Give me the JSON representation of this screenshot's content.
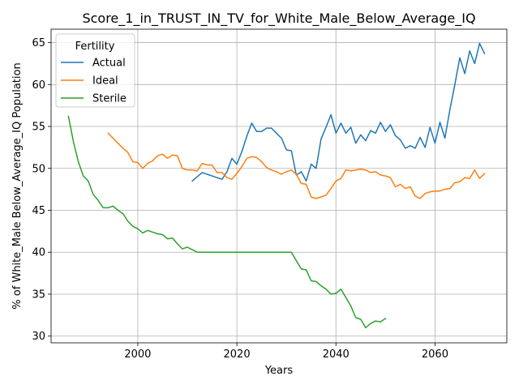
{
  "chart_data": {
    "type": "line",
    "title": "Score_1_in_TRUST_IN_TV_for_White_Male_Below_Average_IQ",
    "xlabel": "Years",
    "ylabel": "% of White_Male Below_Average_IQ Population",
    "xlim": [
      1982.5,
      2074.5
    ],
    "ylim": [
      29.2,
      66.6
    ],
    "xticks": [
      2000,
      2020,
      2040,
      2060
    ],
    "yticks": [
      30,
      35,
      40,
      45,
      50,
      55,
      60,
      65
    ],
    "grid": true,
    "legend": {
      "title": "Fertility",
      "placement": "top-left"
    },
    "series": [
      {
        "name": "Actual",
        "color": "#1f77b4",
        "x": [
          2011,
          2012,
          2013,
          2014,
          2015,
          2016,
          2017,
          2018,
          2019,
          2020,
          2021,
          2022,
          2023,
          2024,
          2025,
          2026,
          2027,
          2028,
          2029,
          2030,
          2031,
          2032,
          2033,
          2034,
          2035,
          2036,
          2037,
          2038,
          2039,
          2040,
          2041,
          2042,
          2043,
          2044,
          2045,
          2046,
          2047,
          2048,
          2049,
          2050,
          2051,
          2052,
          2053,
          2054,
          2055,
          2056,
          2057,
          2058,
          2059,
          2060,
          2061,
          2062,
          2063,
          2064,
          2065,
          2066,
          2067,
          2068,
          2069,
          2070
        ],
        "values": [
          48.5,
          49.0,
          49.5,
          49.3,
          49.1,
          48.9,
          48.7,
          49.6,
          51.2,
          50.5,
          52.0,
          53.8,
          55.4,
          54.4,
          54.4,
          54.8,
          54.8,
          54.2,
          53.6,
          52.2,
          52.1,
          49.2,
          49.6,
          48.5,
          50.5,
          50.0,
          53.5,
          54.9,
          56.4,
          54.2,
          55.4,
          54.2,
          54.9,
          53.0,
          54.0,
          53.3,
          54.5,
          54.2,
          55.5,
          54.4,
          55.2,
          53.9,
          53.4,
          52.4,
          52.7,
          52.4,
          53.7,
          52.5,
          54.9,
          53.0,
          55.5,
          53.6,
          57.0,
          60.0,
          63.2,
          61.3,
          64.0,
          62.5,
          64.9,
          63.7
        ]
      },
      {
        "name": "Ideal",
        "color": "#ff7f0e",
        "x": [
          1994,
          1995,
          1996,
          1997,
          1998,
          1999,
          2000,
          2001,
          2002,
          2003,
          2004,
          2005,
          2006,
          2007,
          2008,
          2009,
          2010,
          2011,
          2012,
          2013,
          2014,
          2015,
          2016,
          2017,
          2018,
          2019,
          2020,
          2021,
          2022,
          2023,
          2024,
          2025,
          2026,
          2027,
          2028,
          2029,
          2030,
          2031,
          2032,
          2033,
          2034,
          2035,
          2036,
          2037,
          2038,
          2039,
          2040,
          2041,
          2042,
          2043,
          2044,
          2045,
          2046,
          2047,
          2048,
          2049,
          2050,
          2051,
          2052,
          2053,
          2054,
          2055,
          2056,
          2057,
          2058,
          2059,
          2060,
          2061,
          2062,
          2063,
          2064,
          2065,
          2066,
          2067,
          2068,
          2069,
          2070
        ],
        "values": [
          54.2,
          53.6,
          53.0,
          52.4,
          51.9,
          50.8,
          50.7,
          50.0,
          50.6,
          50.9,
          51.5,
          51.7,
          51.2,
          51.6,
          51.5,
          50.0,
          49.8,
          49.8,
          49.7,
          50.6,
          50.4,
          50.4,
          49.5,
          49.5,
          48.9,
          48.7,
          49.4,
          50.2,
          51.2,
          51.4,
          51.3,
          50.8,
          50.1,
          49.8,
          49.6,
          49.3,
          49.6,
          49.8,
          49.3,
          48.2,
          48.1,
          46.6,
          46.4,
          46.6,
          46.8,
          47.6,
          48.5,
          48.8,
          49.8,
          49.7,
          49.8,
          49.9,
          49.8,
          49.5,
          49.6,
          49.2,
          49.1,
          48.9,
          47.8,
          48.1,
          47.6,
          47.8,
          46.7,
          46.4,
          47.0,
          47.2,
          47.3,
          47.3,
          47.5,
          47.6,
          48.3,
          48.4,
          48.9,
          48.8,
          49.8,
          48.8,
          49.4
        ]
      },
      {
        "name": "Sterile",
        "color": "#2ca02c",
        "x": [
          1986,
          1987,
          1988,
          1989,
          1990,
          1991,
          1992,
          1993,
          1994,
          1995,
          1996,
          1997,
          1998,
          1999,
          2000,
          2001,
          2002,
          2003,
          2004,
          2005,
          2006,
          2007,
          2008,
          2009,
          2010,
          2011,
          2012,
          2013,
          2014,
          2015,
          2016,
          2017,
          2018,
          2019,
          2020,
          2021,
          2022,
          2023,
          2024,
          2025,
          2026,
          2027,
          2028,
          2029,
          2030,
          2031,
          2032,
          2033,
          2034,
          2035,
          2036,
          2037,
          2038,
          2039,
          2040,
          2041,
          2042,
          2043,
          2044,
          2045,
          2046,
          2047,
          2048,
          2049,
          2050
        ],
        "values": [
          56.2,
          53.2,
          50.8,
          49.1,
          48.5,
          46.9,
          46.2,
          45.3,
          45.3,
          45.5,
          45.0,
          44.6,
          43.7,
          43.1,
          42.8,
          42.3,
          42.6,
          42.4,
          42.2,
          42.1,
          41.6,
          41.7,
          41.0,
          40.4,
          40.6,
          40.3,
          40.0,
          40.0,
          40.0,
          40.0,
          40.0,
          40.0,
          40.0,
          40.0,
          40.0,
          40.0,
          40.0,
          40.0,
          40.0,
          40.0,
          40.0,
          40.0,
          40.0,
          40.0,
          40.0,
          40.0,
          39.0,
          38.0,
          37.9,
          36.6,
          36.5,
          36.0,
          35.6,
          35.0,
          35.1,
          35.6,
          34.6,
          33.6,
          32.2,
          32.0,
          31.0,
          31.5,
          31.8,
          31.7,
          32.1
        ]
      }
    ]
  }
}
